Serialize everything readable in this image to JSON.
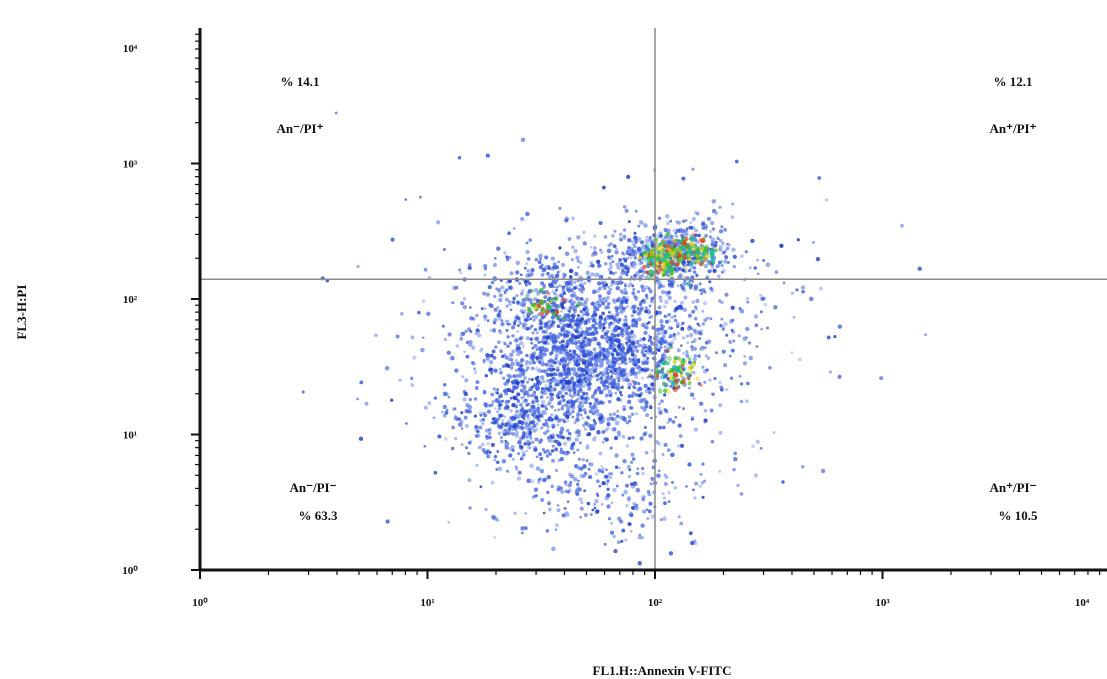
{
  "chart_data": {
    "type": "scatter",
    "xlabel": "FL1.H::Annexin V-FITC",
    "ylabel": "FL3-H:PI",
    "x_scale": "log",
    "y_scale": "log",
    "xlim": [
      1,
      10000
    ],
    "ylim": [
      1,
      10000
    ],
    "x_ticks": [
      {
        "value": 1,
        "label": "10⁰"
      },
      {
        "value": 10,
        "label": "10¹"
      },
      {
        "value": 100,
        "label": "10²"
      },
      {
        "value": 1000,
        "label": "10³"
      },
      {
        "value": 10000,
        "label": "10⁴"
      }
    ],
    "y_ticks": [
      {
        "value": 1,
        "label": "10⁰"
      },
      {
        "value": 10,
        "label": "10¹"
      },
      {
        "value": 100,
        "label": "10²"
      },
      {
        "value": 1000,
        "label": "10³"
      },
      {
        "value": 10000,
        "label": "10⁴"
      }
    ],
    "quadrant_gate": {
      "x": 100,
      "y": 140
    },
    "quadrants": [
      {
        "position": "upper-left",
        "percent_label": "% 14.1",
        "population_label": "An⁻/PI⁺",
        "percent": 14.1
      },
      {
        "position": "upper-right",
        "percent_label": "% 12.1",
        "population_label": "An⁺/PI⁺",
        "percent": 12.1
      },
      {
        "position": "lower-left",
        "percent_label": "% 63.3",
        "population_label": "An⁻/PI⁻",
        "percent": 63.3
      },
      {
        "position": "lower-right",
        "percent_label": "% 10.5",
        "population_label": "An⁺/PI⁻",
        "percent": 10.5
      }
    ],
    "density_clusters": [
      {
        "x": 45,
        "y": 35,
        "sx": 0.22,
        "sy": 0.3,
        "n": 1500
      },
      {
        "x": 25,
        "y": 12,
        "sx": 0.16,
        "sy": 0.13,
        "n": 300
      },
      {
        "x": 90,
        "y": 45,
        "sx": 0.2,
        "sy": 0.25,
        "n": 400
      },
      {
        "x": 120,
        "y": 210,
        "sx": 0.13,
        "sy": 0.13,
        "n": 500
      },
      {
        "x": 35,
        "y": 110,
        "sx": 0.18,
        "sy": 0.15,
        "n": 260
      },
      {
        "x": 60,
        "y": 4,
        "sx": 0.25,
        "sy": 0.22,
        "n": 250
      },
      {
        "x": 60,
        "y": 60,
        "sx": 0.5,
        "sy": 0.5,
        "n": 350
      }
    ],
    "hotspots": [
      {
        "x": 110,
        "y": 200,
        "sx": 0.05,
        "sy": 0.06,
        "n": 160
      },
      {
        "x": 150,
        "y": 225,
        "sx": 0.05,
        "sy": 0.05,
        "n": 100
      },
      {
        "x": 125,
        "y": 28,
        "sx": 0.05,
        "sy": 0.07,
        "n": 70
      },
      {
        "x": 32,
        "y": 90,
        "sx": 0.05,
        "sy": 0.05,
        "n": 40
      }
    ],
    "colormap": [
      "#2b4fd8",
      "#1fb8a0",
      "#36c22b",
      "#e0d020",
      "#e04010"
    ],
    "grid": false
  }
}
